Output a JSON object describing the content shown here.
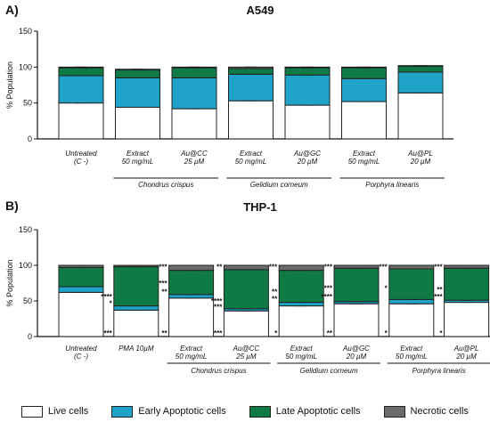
{
  "colors": {
    "live": "#ffffff",
    "early": "#1fa3c8",
    "late": "#0f7a43",
    "necrotic": "#6b6b6b",
    "sig_black": "#111111",
    "sig_green": "#18a24a",
    "sig_blue": "#1fa3c8"
  },
  "legend": [
    {
      "label": "Live cells",
      "color": "#ffffff"
    },
    {
      "label": "Early Apoptotic cells",
      "color": "#1fa3c8"
    },
    {
      "label": "Late Apoptotic cells",
      "color": "#0f7a43"
    },
    {
      "label": "Necrotic cells",
      "color": "#6b6b6b"
    }
  ],
  "chart_data": [
    {
      "type": "bar",
      "stacked": true,
      "panel_label": "A)",
      "title": "A549",
      "ylabel": "% Population",
      "ylim": [
        0,
        150
      ],
      "yticks": [
        0,
        50,
        100,
        150
      ],
      "categories": [
        [
          "Untreated",
          "(C -)"
        ],
        [
          "Extract",
          "50 mg/mL"
        ],
        [
          "Au@CC",
          "25 µM"
        ],
        [
          "Extract",
          "50 mg/mL"
        ],
        [
          "Au@GC",
          "20 µM"
        ],
        [
          "Extract",
          "50 mg/mL"
        ],
        [
          "Au@PL",
          "20 µM"
        ]
      ],
      "groups": [
        {
          "label": "Chondrus crispus",
          "from": 1,
          "to": 2
        },
        {
          "label": "Gelidium corneum",
          "from": 3,
          "to": 4
        },
        {
          "label": "Porphyra linearis",
          "from": 5,
          "to": 6
        }
      ],
      "series": [
        {
          "name": "Live cells",
          "key": "live",
          "values": [
            50,
            44,
            42,
            53,
            47,
            52,
            64
          ]
        },
        {
          "name": "Early Apoptotic cells",
          "key": "early",
          "values": [
            38,
            41,
            43,
            37,
            42,
            32,
            29
          ]
        },
        {
          "name": "Late Apoptotic cells",
          "key": "late",
          "values": [
            11,
            11,
            14,
            8,
            10,
            15,
            8
          ]
        },
        {
          "name": "Necrotic cells",
          "key": "necrotic",
          "values": [
            1,
            1,
            1,
            2,
            1,
            1,
            1
          ]
        }
      ],
      "significance": []
    },
    {
      "type": "bar",
      "stacked": true,
      "panel_label": "B)",
      "title": "THP-1",
      "ylabel": "% Population",
      "ylim": [
        0,
        150
      ],
      "yticks": [
        0,
        50,
        100,
        150
      ],
      "categories": [
        [
          "Untreated",
          "(C -)"
        ],
        [
          "PMA 10µM"
        ],
        [
          "Extract",
          "50 mg/mL"
        ],
        [
          "Au@CC",
          "25 µM"
        ],
        [
          "Extract",
          "50 mg/mL"
        ],
        [
          "Au@GC",
          "20 µM"
        ],
        [
          "Extract",
          "50 mg/mL"
        ],
        [
          "Au@PL",
          "20 µM"
        ]
      ],
      "groups": [
        {
          "label": "Chondrus crispus",
          "from": 2,
          "to": 3
        },
        {
          "label": "Gelidium corneum",
          "from": 4,
          "to": 5
        },
        {
          "label": "Porphyra linearis",
          "from": 6,
          "to": 7
        }
      ],
      "series": [
        {
          "name": "Live cells",
          "key": "live",
          "values": [
            62,
            37,
            54,
            36,
            43,
            46,
            46,
            48
          ]
        },
        {
          "name": "Early Apoptotic cells",
          "key": "early",
          "values": [
            8,
            6,
            5,
            3,
            5,
            3,
            6,
            3
          ]
        },
        {
          "name": "Late Apoptotic cells",
          "key": "late",
          "values": [
            27,
            55,
            34,
            55,
            45,
            47,
            43,
            45
          ]
        },
        {
          "name": "Necrotic cells",
          "key": "necrotic",
          "values": [
            3,
            2,
            7,
            6,
            7,
            4,
            5,
            4
          ]
        }
      ],
      "significance": [
        {
          "bar": 1,
          "y": 5,
          "text": "***",
          "color": "sig_black"
        },
        {
          "bar": 1,
          "y": 56,
          "text": "****",
          "color": "sig_green"
        },
        {
          "bar": 1,
          "y": 47,
          "text": "*",
          "color": "sig_blue"
        },
        {
          "bar": 2,
          "y": 5,
          "text": "**",
          "color": "sig_black"
        },
        {
          "bar": 2,
          "y": 75,
          "text": "***",
          "color": "sig_green"
        },
        {
          "bar": 2,
          "y": 63,
          "text": "**",
          "color": "sig_blue"
        },
        {
          "bar": 2,
          "y": 98,
          "text": "***",
          "color": "sig_black"
        },
        {
          "bar": 3,
          "y": 5,
          "text": "***",
          "color": "sig_black"
        },
        {
          "bar": 3,
          "y": 50,
          "text": "****",
          "color": "sig_green"
        },
        {
          "bar": 3,
          "y": 42,
          "text": "***",
          "color": "sig_blue"
        },
        {
          "bar": 3,
          "y": 98,
          "text": "**",
          "color": "sig_black"
        },
        {
          "bar": 4,
          "y": 5,
          "text": "*",
          "color": "sig_black"
        },
        {
          "bar": 4,
          "y": 63,
          "text": "**",
          "color": "sig_green"
        },
        {
          "bar": 4,
          "y": 53,
          "text": "**",
          "color": "sig_blue"
        },
        {
          "bar": 4,
          "y": 98,
          "text": "***",
          "color": "sig_black"
        },
        {
          "bar": 5,
          "y": 5,
          "text": "**",
          "color": "sig_black"
        },
        {
          "bar": 5,
          "y": 68,
          "text": "***",
          "color": "sig_green"
        },
        {
          "bar": 5,
          "y": 56,
          "text": "****",
          "color": "sig_blue"
        },
        {
          "bar": 5,
          "y": 98,
          "text": "***",
          "color": "sig_black"
        },
        {
          "bar": 6,
          "y": 5,
          "text": "*",
          "color": "sig_black"
        },
        {
          "bar": 6,
          "y": 68,
          "text": "*",
          "color": "sig_green"
        },
        {
          "bar": 6,
          "y": 98,
          "text": "***",
          "color": "sig_black"
        },
        {
          "bar": 7,
          "y": 5,
          "text": "*",
          "color": "sig_black"
        },
        {
          "bar": 7,
          "y": 66,
          "text": "**",
          "color": "sig_green"
        },
        {
          "bar": 7,
          "y": 56,
          "text": "***",
          "color": "sig_blue"
        },
        {
          "bar": 7,
          "y": 98,
          "text": "***",
          "color": "sig_black"
        }
      ]
    }
  ]
}
